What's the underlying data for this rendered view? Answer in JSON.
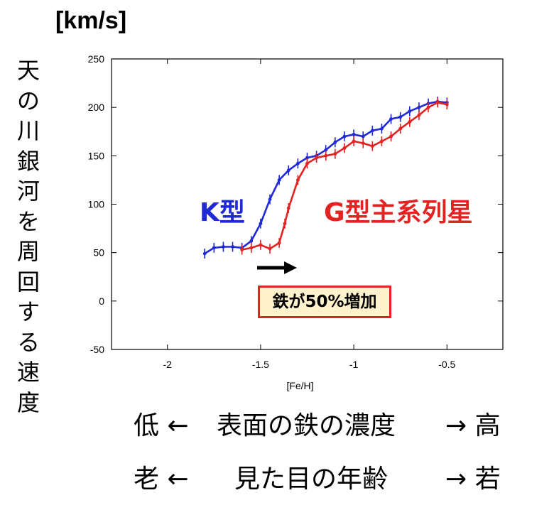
{
  "unit_label": "[km/s]",
  "vertical_label": [
    "天",
    "の",
    "川",
    "銀",
    "河",
    "を",
    "周",
    "回",
    "す",
    "る",
    "速",
    "度"
  ],
  "chart_data": {
    "type": "line",
    "title": "",
    "xlabel": "[Fe/H]",
    "ylabel": "天の川銀河を周回する速度",
    "xlim": [
      -2.3,
      -0.2
    ],
    "ylim": [
      -50,
      250
    ],
    "x_ticks": [
      -2,
      -1.5,
      -1,
      -0.5
    ],
    "x_tick_labels": [
      "-2",
      "-1.5",
      "-1",
      "-0.5"
    ],
    "y_ticks": [
      -50,
      0,
      50,
      100,
      150,
      200,
      250
    ],
    "y_tick_labels": [
      "-50",
      "0",
      "50",
      "100",
      "150",
      "200",
      "250"
    ],
    "grid": false,
    "series": [
      {
        "name": "K型",
        "color": "#1f2ad6",
        "x": [
          -1.8,
          -1.75,
          -1.7,
          -1.65,
          -1.6,
          -1.55,
          -1.5,
          -1.45,
          -1.4,
          -1.35,
          -1.3,
          -1.25,
          -1.2,
          -1.15,
          -1.1,
          -1.05,
          -1.0,
          -0.95,
          -0.9,
          -0.85,
          -0.8,
          -0.75,
          -0.7,
          -0.65,
          -0.6,
          -0.55,
          -0.5
        ],
        "y": [
          49,
          55,
          56,
          56,
          55,
          62,
          80,
          105,
          125,
          135,
          142,
          148,
          150,
          156,
          164,
          170,
          172,
          170,
          176,
          178,
          188,
          190,
          196,
          200,
          204,
          206,
          205
        ]
      },
      {
        "name": "G型主系列星",
        "color": "#e32222",
        "x": [
          -1.6,
          -1.55,
          -1.5,
          -1.45,
          -1.4,
          -1.37,
          -1.35,
          -1.3,
          -1.25,
          -1.2,
          -1.15,
          -1.1,
          -1.05,
          -1.0,
          -0.95,
          -0.9,
          -0.85,
          -0.8,
          -0.75,
          -0.7,
          -0.65,
          -0.6,
          -0.55,
          -0.5
        ],
        "y": [
          53,
          55,
          58,
          54,
          60,
          80,
          96,
          125,
          142,
          148,
          150,
          152,
          158,
          165,
          163,
          160,
          165,
          170,
          178,
          185,
          192,
          200,
          205,
          203
        ]
      }
    ],
    "annotations": {
      "arrow_text": "→",
      "note": "鉄が50%増加"
    }
  },
  "bottom": {
    "row1": {
      "left": "低 ←",
      "center": "表面の鉄の濃度",
      "right": "→ 高"
    },
    "row2": {
      "left": "老 ←",
      "center": "見た目の年齢",
      "right": "→ 若"
    }
  }
}
